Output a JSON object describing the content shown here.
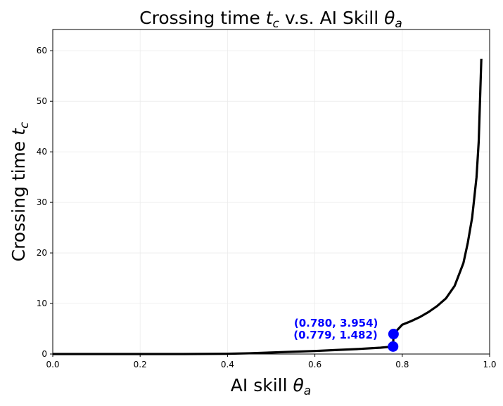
{
  "chart_data": {
    "type": "line",
    "title": [
      "Crossing time ",
      "t",
      "c",
      " v.s. AI Skill ",
      "θ",
      "a"
    ],
    "xlabel": [
      "AI skill ",
      "θ",
      "a"
    ],
    "ylabel": [
      "Crossing time ",
      "t",
      "c"
    ],
    "x": [
      0,
      0.1,
      0.2,
      0.3,
      0.4,
      0.45,
      0.5,
      0.55,
      0.6,
      0.65,
      0.7,
      0.75,
      0.779,
      0.78,
      0.8,
      0.82,
      0.84,
      0.86,
      0.88,
      0.9,
      0.92,
      0.94,
      0.95,
      0.96,
      0.97,
      0.975,
      0.981
    ],
    "series": [
      {
        "color": "#000000",
        "values": [
          0,
          0,
          0,
          0,
          0.05,
          0.15,
          0.3,
          0.45,
          0.6,
          0.8,
          1.0,
          1.25,
          1.482,
          3.954,
          5.8,
          6.5,
          7.3,
          8.3,
          9.5,
          11,
          13.5,
          18,
          22,
          27,
          35,
          42,
          58.4
        ]
      }
    ],
    "points": {
      "color": "#0000ff",
      "x": [
        0.78,
        0.779
      ],
      "values": [
        3.954,
        1.482
      ],
      "value_labels": [
        "(0.780, 3.954)",
        "(0.779, 1.482)"
      ]
    },
    "xlim": [
      0,
      1
    ],
    "ylim": [
      0,
      64.2
    ],
    "xticks": [
      {
        "value": 0,
        "label": "0.0"
      },
      0.2,
      0.4,
      0.6,
      0.8,
      {
        "value": 1,
        "label": "1.0"
      }
    ],
    "yticks": [
      0,
      10,
      20,
      30,
      40,
      50,
      60
    ],
    "grid": true
  }
}
